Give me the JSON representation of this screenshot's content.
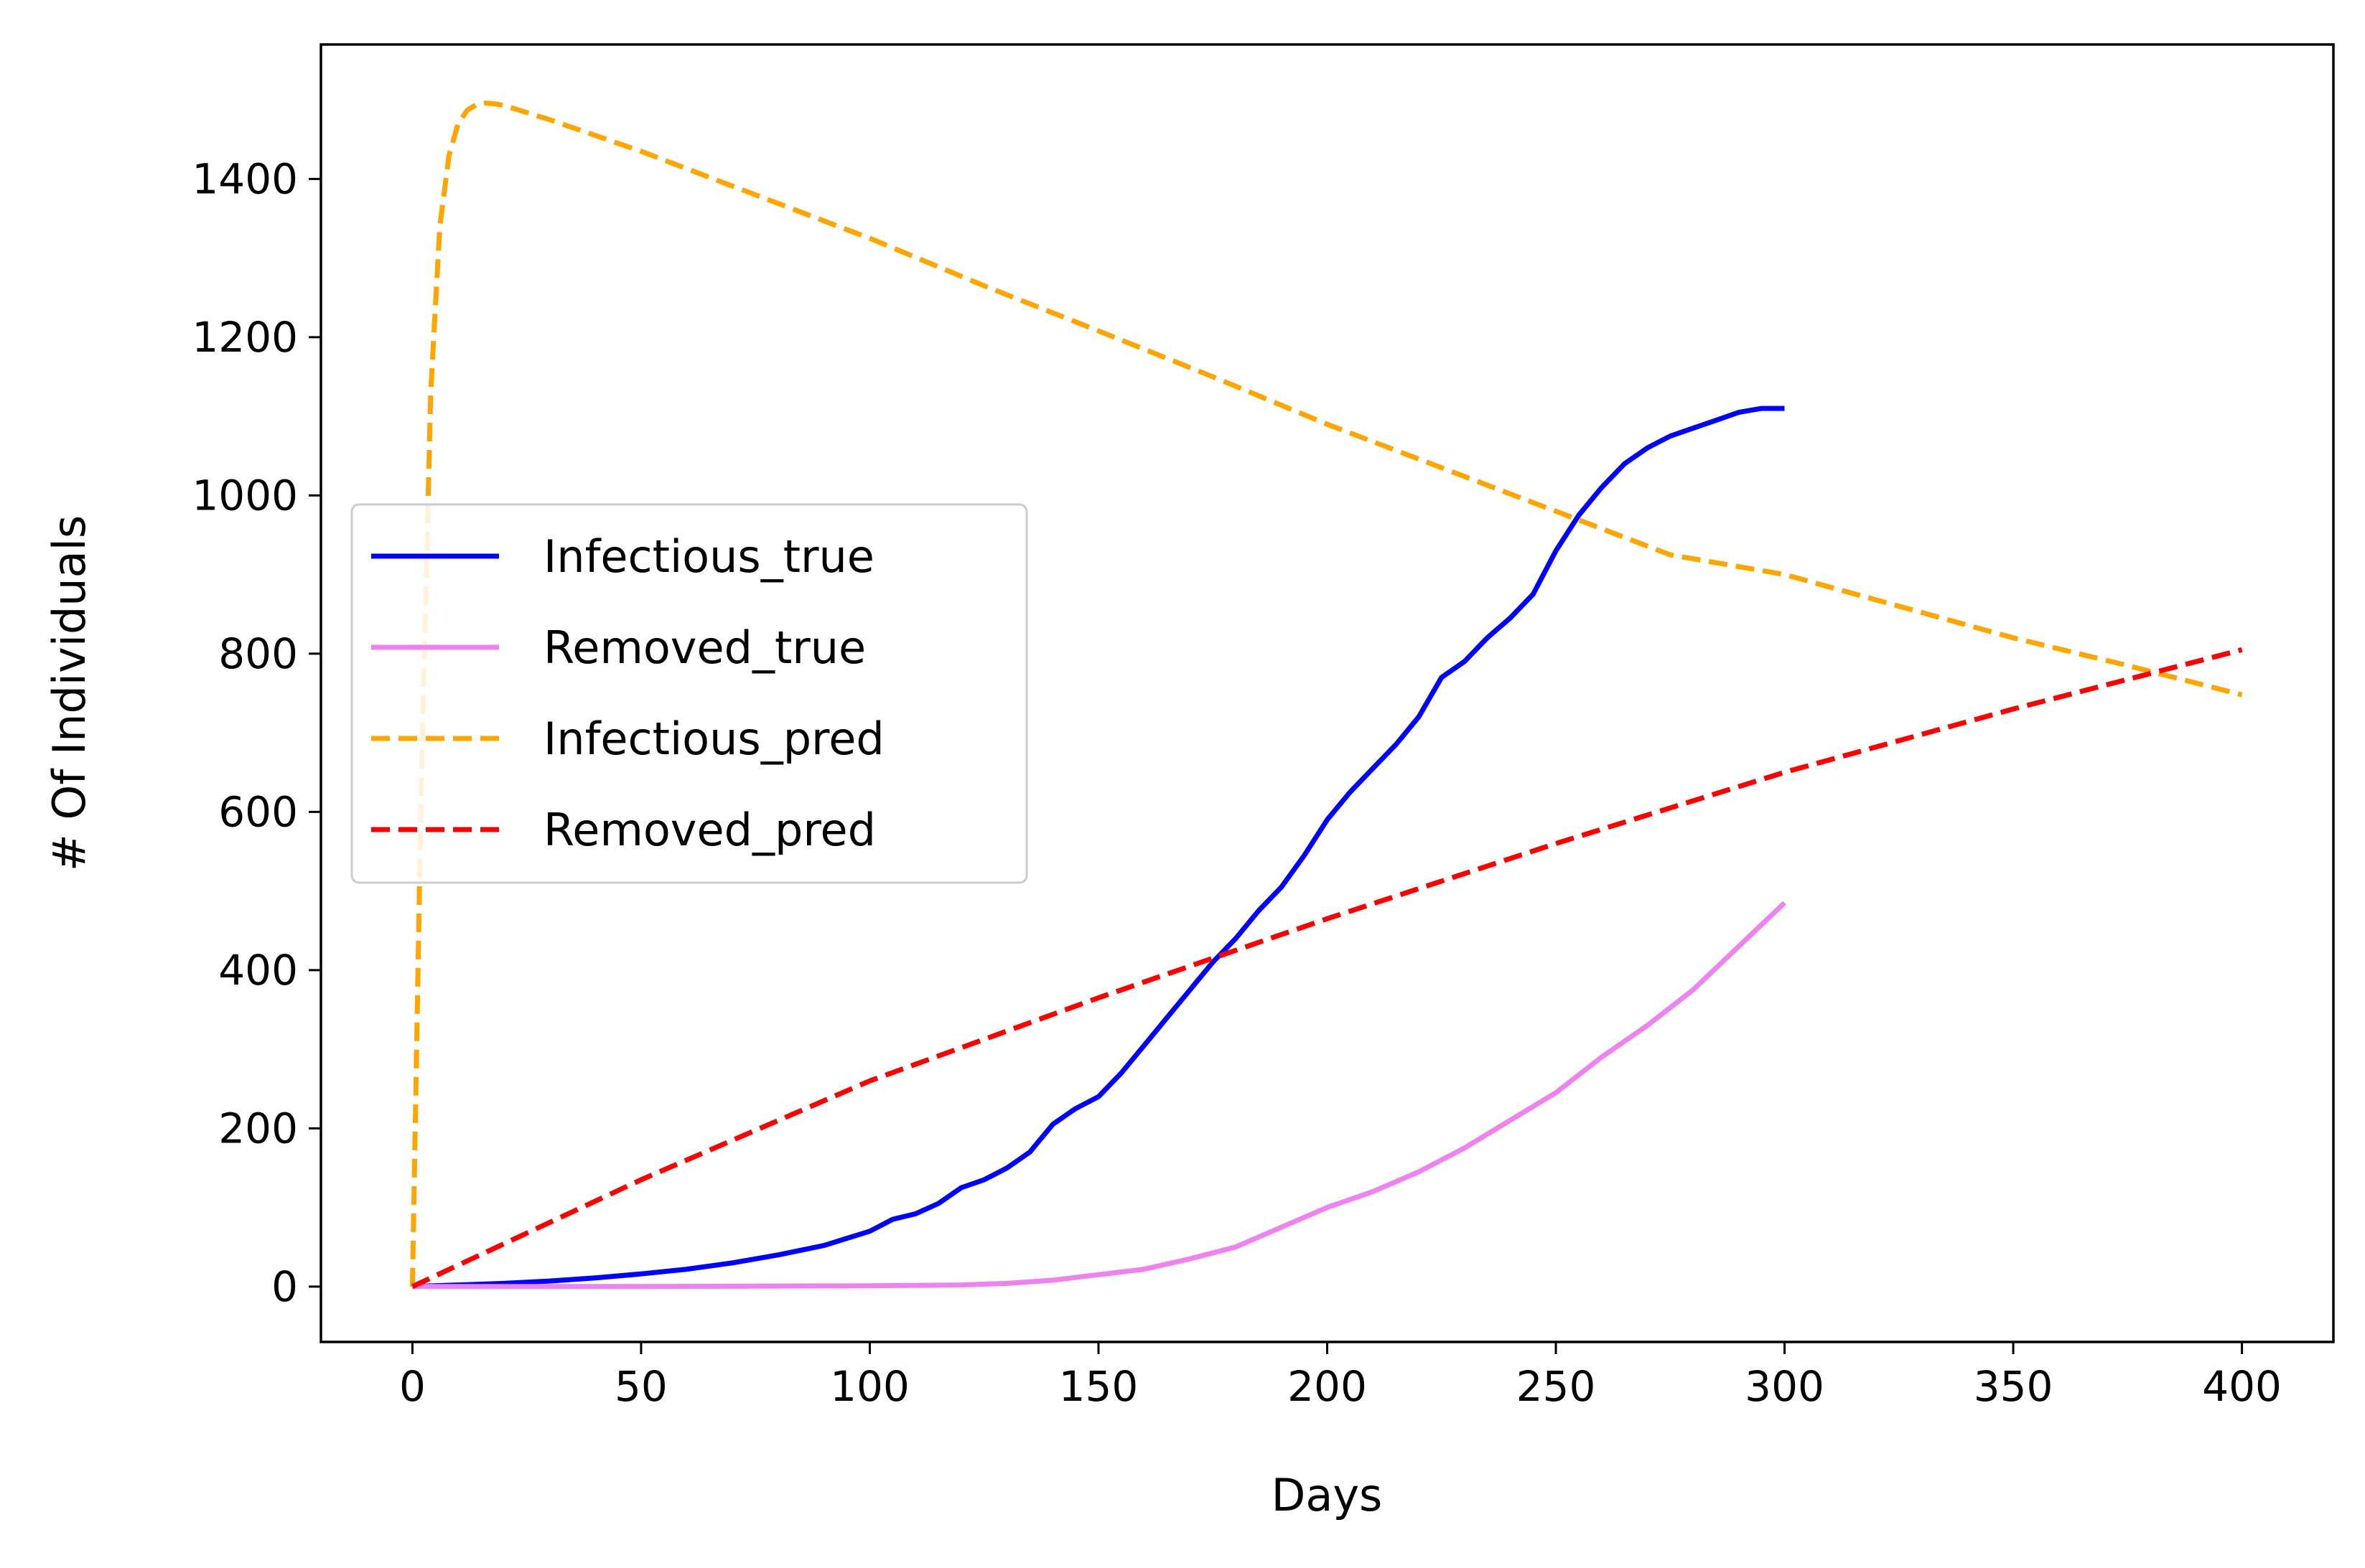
{
  "chart_data": {
    "type": "line",
    "title": "",
    "xlabel": "Days",
    "ylabel": "# Of Individuals",
    "xlim": [
      -20,
      420
    ],
    "ylim": [
      -70,
      1570
    ],
    "xticks": [
      0,
      50,
      100,
      150,
      200,
      250,
      300,
      350,
      400
    ],
    "yticks": [
      0,
      200,
      400,
      600,
      800,
      1000,
      1200,
      1400
    ],
    "grid": false,
    "legend_position": "center-left",
    "series": [
      {
        "name": "Infectious_true",
        "color": "#0000ff",
        "style": "solid",
        "x": [
          0,
          10,
          20,
          30,
          40,
          50,
          60,
          70,
          80,
          90,
          100,
          105,
          110,
          115,
          120,
          125,
          130,
          135,
          140,
          145,
          150,
          155,
          160,
          165,
          170,
          175,
          180,
          185,
          190,
          195,
          200,
          205,
          210,
          215,
          220,
          225,
          230,
          235,
          240,
          245,
          250,
          255,
          260,
          265,
          270,
          275,
          280,
          285,
          290,
          295,
          300
        ],
        "y": [
          0,
          2,
          4,
          7,
          11,
          16,
          22,
          30,
          40,
          52,
          70,
          85,
          92,
          105,
          125,
          135,
          150,
          170,
          205,
          225,
          240,
          270,
          305,
          340,
          375,
          410,
          440,
          475,
          505,
          545,
          590,
          625,
          655,
          685,
          720,
          770,
          790,
          820,
          845,
          875,
          930,
          975,
          1010,
          1040,
          1060,
          1075,
          1085,
          1095,
          1105,
          1110,
          1110
        ]
      },
      {
        "name": "Removed_true",
        "color": "#ee82ee",
        "style": "solid",
        "x": [
          0,
          50,
          100,
          120,
          130,
          140,
          150,
          160,
          170,
          180,
          190,
          200,
          210,
          220,
          230,
          240,
          250,
          260,
          270,
          280,
          290,
          300
        ],
        "y": [
          0,
          0,
          1,
          2,
          4,
          8,
          15,
          22,
          35,
          50,
          75,
          100,
          120,
          145,
          175,
          210,
          245,
          290,
          330,
          375,
          430,
          485
        ]
      },
      {
        "name": "Infectious_pred",
        "color": "#ffa500",
        "style": "dashed",
        "x": [
          0,
          2,
          4,
          6,
          8,
          10,
          12,
          14,
          16,
          18,
          20,
          30,
          50,
          75,
          100,
          125,
          150,
          175,
          200,
          225,
          250,
          275,
          300,
          325,
          350,
          375,
          400
        ],
        "y": [
          0,
          650,
          1130,
          1340,
          1430,
          1470,
          1487,
          1494,
          1496,
          1495,
          1493,
          1475,
          1435,
          1380,
          1325,
          1265,
          1208,
          1150,
          1090,
          1035,
          980,
          925,
          900,
          860,
          820,
          785,
          748
        ]
      },
      {
        "name": "Removed_pred",
        "color": "#ff0000",
        "style": "dashed",
        "x": [
          0,
          50,
          100,
          150,
          200,
          250,
          300,
          350,
          400
        ],
        "y": [
          0,
          135,
          260,
          365,
          465,
          560,
          650,
          730,
          805
        ]
      }
    ]
  }
}
